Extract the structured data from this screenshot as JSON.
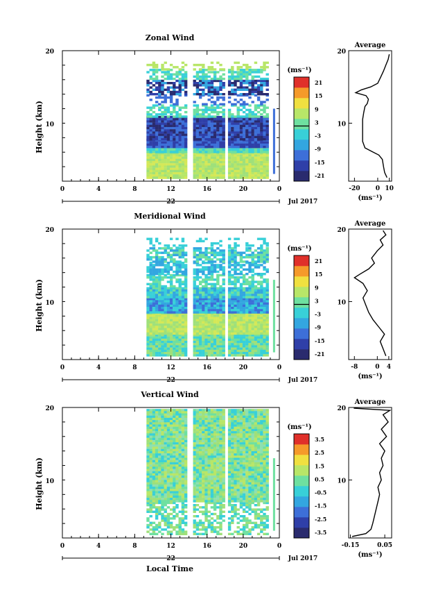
{
  "chart_data": [
    {
      "type": "heatmap",
      "title": "Zonal Wind",
      "ylabel": "Height (km)",
      "ylim": [
        2,
        20
      ],
      "yticks": [
        10,
        20
      ],
      "xlim": [
        0,
        24
      ],
      "xticks": [
        "0",
        "4",
        "8",
        "12",
        "16",
        "20",
        "0"
      ],
      "day_label": "22",
      "date_label": "Jul 2017",
      "colorbar": {
        "unit": "(ms⁻¹)",
        "range": [
          -24,
          24
        ],
        "ticks": [
          "21",
          "15",
          "9",
          "3",
          "-3",
          "-9",
          "-15",
          "-21"
        ]
      },
      "profile": {
        "title": "Average",
        "xlabel": "(ms⁻¹)",
        "xticks": [
          "-20",
          "0",
          "10"
        ],
        "xlim": [
          -25,
          12
        ],
        "ylim": [
          2,
          20
        ],
        "yticks": [
          10,
          20
        ],
        "points": [
          [
            8,
            2.5
          ],
          [
            6,
            3.2
          ],
          [
            5,
            4
          ],
          [
            4,
            5
          ],
          [
            1,
            5.6
          ],
          [
            -5,
            6.1
          ],
          [
            -11,
            6.6
          ],
          [
            -13,
            7.5
          ],
          [
            -13,
            9
          ],
          [
            -13,
            10.5
          ],
          [
            -12,
            11.5
          ],
          [
            -11,
            12.3
          ],
          [
            -9,
            12.7
          ],
          [
            -8,
            13.3
          ],
          [
            -10,
            13.8
          ],
          [
            -19,
            14.2
          ],
          [
            -14,
            14.6
          ],
          [
            -6,
            15
          ],
          [
            0,
            15.5
          ],
          [
            3,
            16.5
          ],
          [
            5,
            17.2
          ],
          [
            7,
            18
          ],
          [
            9,
            18.8
          ],
          [
            10,
            19.5
          ]
        ]
      }
    },
    {
      "type": "heatmap",
      "title": "Meridional Wind",
      "ylabel": "Height (km)",
      "ylim": [
        2,
        20
      ],
      "yticks": [
        10,
        20
      ],
      "xlim": [
        0,
        24
      ],
      "xticks": [
        "0",
        "4",
        "8",
        "12",
        "16",
        "20",
        "0"
      ],
      "day_label": "22",
      "date_label": "Jul 2017",
      "colorbar": {
        "unit": "(ms⁻¹)",
        "range": [
          -24,
          24
        ],
        "ticks": [
          "21",
          "15",
          "9",
          "3",
          "-3",
          "-9",
          "-15",
          "-21"
        ]
      },
      "profile": {
        "title": "Average",
        "xlabel": "(ms⁻¹)",
        "xticks": [
          "-8",
          "0",
          "4"
        ],
        "xlim": [
          -10,
          5
        ],
        "ylim": [
          2,
          20
        ],
        "yticks": [
          10,
          20
        ],
        "points": [
          [
            3,
            2.5
          ],
          [
            2,
            3.5
          ],
          [
            1,
            4.5
          ],
          [
            2.5,
            5.5
          ],
          [
            0.5,
            6.5
          ],
          [
            -1.5,
            7.5
          ],
          [
            -3,
            8.5
          ],
          [
            -4,
            9.5
          ],
          [
            -5,
            10.5
          ],
          [
            -3.5,
            11.5
          ],
          [
            -5,
            12.5
          ],
          [
            -8,
            13.3
          ],
          [
            -6,
            13.8
          ],
          [
            -3,
            14.5
          ],
          [
            -1,
            15.3
          ],
          [
            -2,
            16
          ],
          [
            0,
            17
          ],
          [
            2,
            17.8
          ],
          [
            1,
            18.5
          ],
          [
            3,
            19.2
          ],
          [
            2,
            19.8
          ]
        ]
      }
    },
    {
      "type": "heatmap",
      "title": "Vertical Wind",
      "ylabel": "Height (km)",
      "xlabel": "Local Time",
      "ylim": [
        2,
        20
      ],
      "yticks": [
        10,
        20
      ],
      "xlim": [
        0,
        24
      ],
      "xticks": [
        "0",
        "4",
        "8",
        "12",
        "16",
        "20",
        "0"
      ],
      "day_label": "22",
      "date_label": "Jul 2017",
      "colorbar": {
        "unit": "(ms⁻¹)",
        "range": [
          -4,
          4
        ],
        "ticks": [
          "3.5",
          "2.5",
          "1.5",
          "0.5",
          "-0.5",
          "-1.5",
          "-2.5",
          "-3.5"
        ]
      },
      "profile": {
        "title": "Average",
        "xlabel": "(ms⁻¹)",
        "xticks": [
          "-0.15",
          "0.05"
        ],
        "xlim": [
          -0.16,
          0.09
        ],
        "ylim": [
          2,
          20
        ],
        "yticks": [
          10,
          20
        ],
        "points": [
          [
            -0.14,
            2.2
          ],
          [
            -0.06,
            2.6
          ],
          [
            -0.03,
            3.2
          ],
          [
            -0.02,
            4
          ],
          [
            -0.01,
            5
          ],
          [
            0.0,
            6
          ],
          [
            0.01,
            7
          ],
          [
            0.02,
            8
          ],
          [
            0.01,
            9
          ],
          [
            0.03,
            10
          ],
          [
            0.02,
            11
          ],
          [
            0.04,
            12
          ],
          [
            0.03,
            13
          ],
          [
            0.05,
            14
          ],
          [
            0.02,
            15
          ],
          [
            0.06,
            16
          ],
          [
            0.03,
            17
          ],
          [
            0.07,
            18
          ],
          [
            0.04,
            19
          ],
          [
            0.08,
            19.6
          ],
          [
            -0.13,
            19.9
          ]
        ]
      }
    }
  ]
}
